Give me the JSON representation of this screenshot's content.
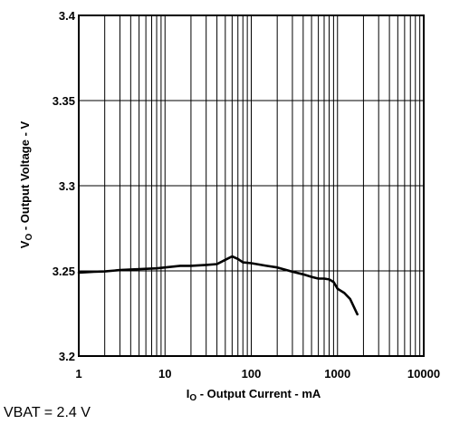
{
  "chart_data": {
    "type": "line",
    "x_scale": "log",
    "xlim": [
      1,
      10000
    ],
    "ylim": [
      3.2,
      3.4
    ],
    "grid": true,
    "x_ticks": [
      1,
      10,
      100,
      1000,
      10000
    ],
    "x_tick_labels": [
      "1",
      "10",
      "100",
      "1000",
      "10000"
    ],
    "y_ticks": [
      3.2,
      3.25,
      3.3,
      3.35,
      3.4
    ],
    "y_tick_labels": [
      "3.2",
      "3.25",
      "3.3",
      "3.35",
      "3.4"
    ],
    "xlabel": {
      "main": "I",
      "sub": "O",
      "rest": " - Output Current - mA"
    },
    "ylabel": {
      "main": "V",
      "sub": "O",
      "rest": " - Output Voltage - V"
    },
    "series": [
      {
        "x": [
          1,
          1.5,
          2,
          3,
          5,
          8,
          10,
          15,
          20,
          30,
          40,
          50,
          60,
          70,
          80,
          100,
          150,
          200,
          300,
          400,
          500,
          600,
          700,
          800,
          900,
          1000,
          1200,
          1400,
          1700
        ],
        "y": [
          3.249,
          3.2495,
          3.2497,
          3.2505,
          3.251,
          3.2515,
          3.252,
          3.253,
          3.253,
          3.2535,
          3.254,
          3.2565,
          3.2585,
          3.257,
          3.255,
          3.2545,
          3.253,
          3.252,
          3.2495,
          3.248,
          3.2465,
          3.2455,
          3.2455,
          3.245,
          3.2435,
          3.2395,
          3.237,
          3.2335,
          3.2245
        ]
      }
    ]
  },
  "condition": "VBAT = 2.4 V"
}
